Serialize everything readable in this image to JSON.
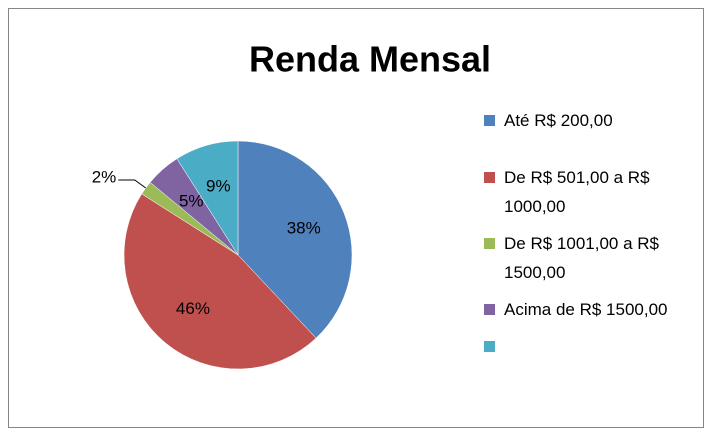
{
  "chart_data": {
    "type": "pie",
    "title": "Renda Mensal",
    "categories": [
      "Até R$ 200,00",
      "De R$ 501,00 a R$ 1000,00",
      "De R$ 1001,00 a R$ 1500,00",
      "Acima de R$ 1500,00",
      null
    ],
    "values": [
      38,
      46,
      2,
      5,
      9
    ],
    "value_labels": [
      "38%",
      "46%",
      "2%",
      "5%",
      "9%"
    ],
    "colors": [
      "#4f81bd",
      "#c0504d",
      "#9bbb59",
      "#8064a2",
      "#4bacc6"
    ],
    "legend": "right"
  }
}
